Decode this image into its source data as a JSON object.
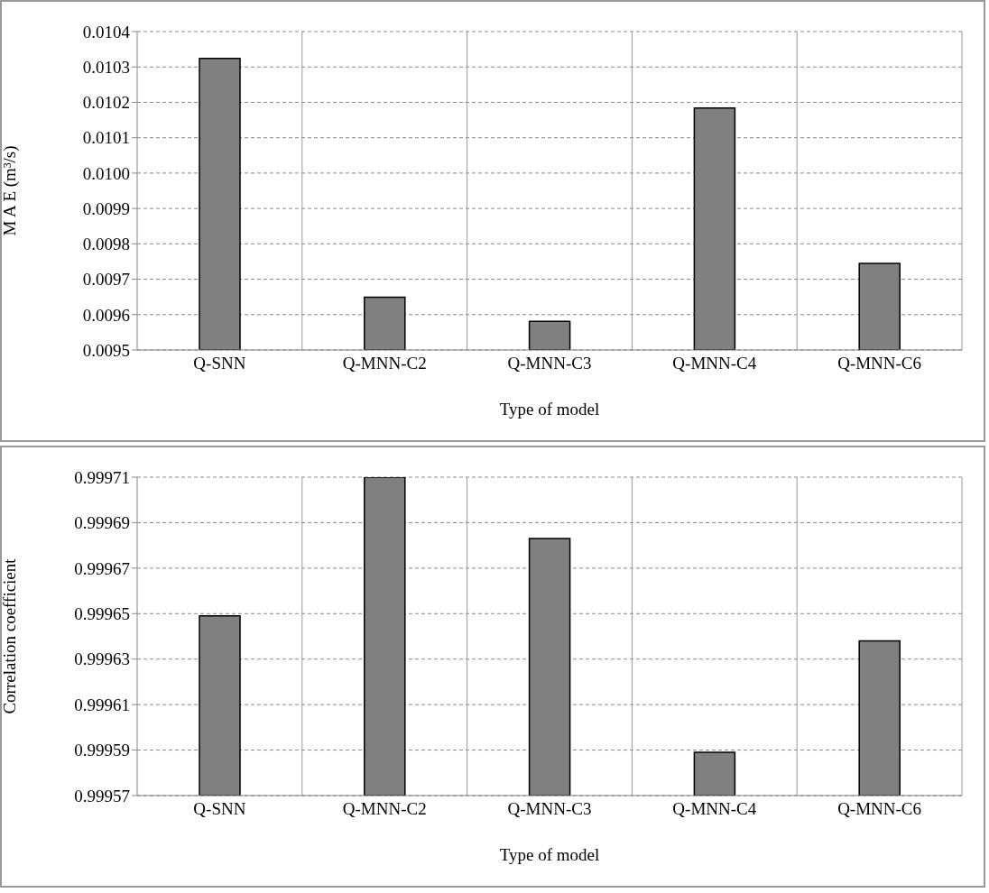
{
  "chart_data": [
    {
      "type": "bar",
      "xlabel": "Type of model",
      "ylabel": "M A E (m³/s)",
      "categories": [
        "Q-SNN",
        "Q-MNN-C2",
        "Q-MNN-C3",
        "Q-MNN-C4",
        "Q-MNN-C6"
      ],
      "values": [
        0.010324,
        0.009649,
        0.009581,
        0.010184,
        0.009745
      ],
      "color": "#808080",
      "ylim": [
        0.0095,
        0.0104
      ],
      "yticks": [
        0.0095,
        0.0096,
        0.0097,
        0.0098,
        0.0099,
        {
          "value": 0.01,
          "label": "0.0100"
        },
        0.0101,
        0.0102,
        0.0103,
        0.0104
      ],
      "grid": true
    },
    {
      "type": "bar",
      "xlabel": "Type of model",
      "ylabel": "Correlation coefficient",
      "categories": [
        "Q-SNN",
        "Q-MNN-C2",
        "Q-MNN-C3",
        "Q-MNN-C4",
        "Q-MNN-C6"
      ],
      "values": [
        0.999649,
        0.99971,
        0.999683,
        0.999589,
        0.999638
      ],
      "color": "#808080",
      "ylim": [
        0.99957,
        0.99971
      ],
      "yticks": [
        0.99957,
        0.99959,
        0.99961,
        0.99963,
        0.99965,
        0.99967,
        0.99969,
        0.99971
      ],
      "grid": true
    }
  ]
}
